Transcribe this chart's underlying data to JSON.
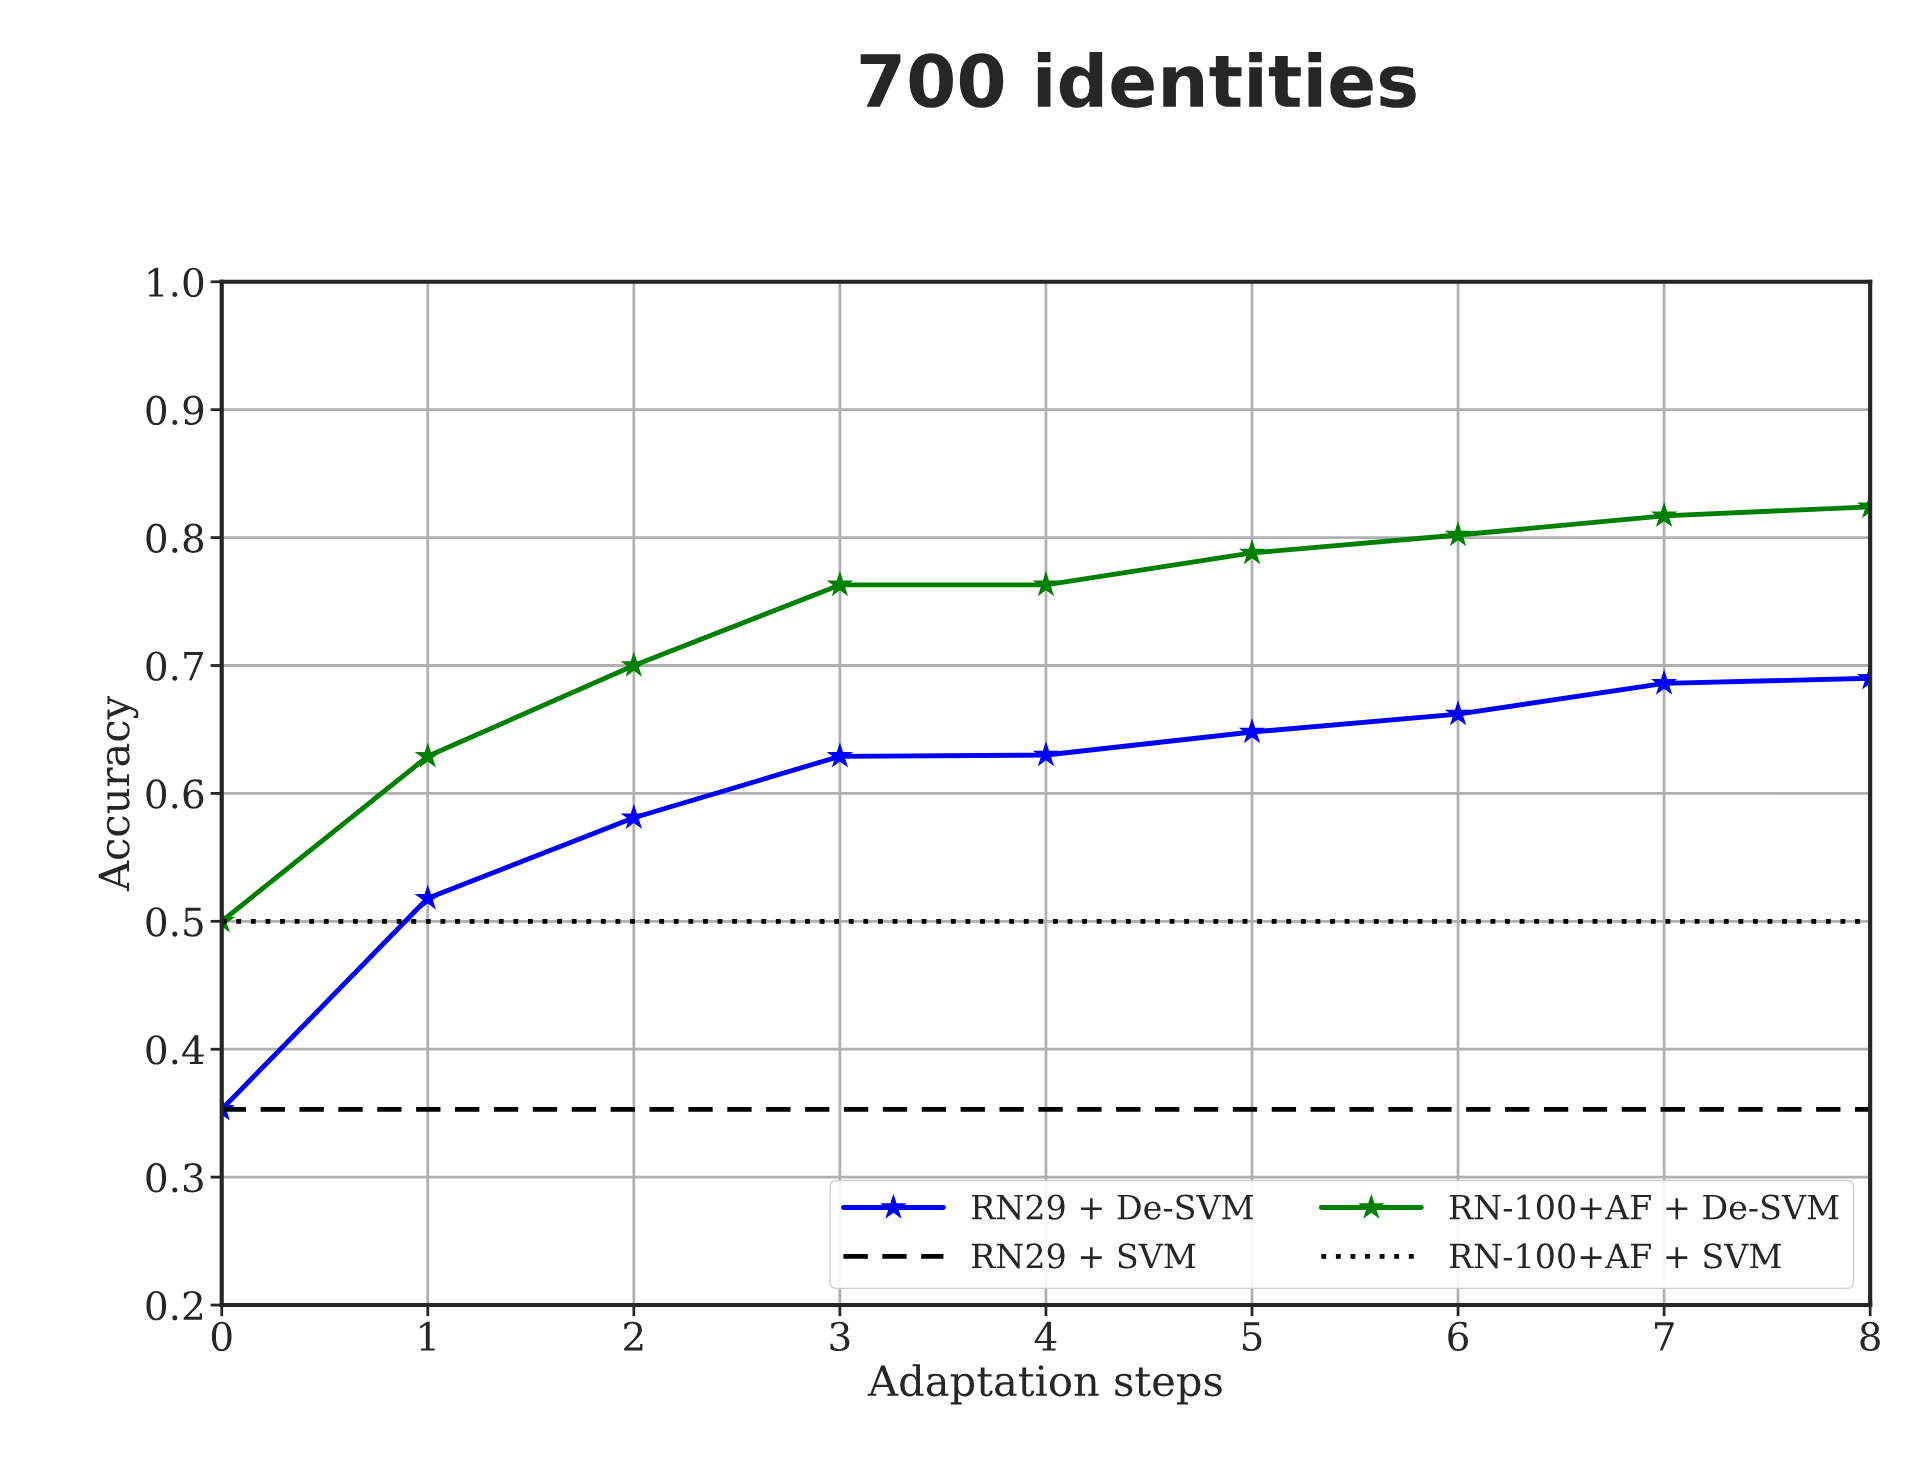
{
  "chart_data": {
    "type": "line",
    "title": "700 identities",
    "xlabel": "Adaptation steps",
    "ylabel": "Accuracy",
    "x": [
      0,
      1,
      2,
      3,
      4,
      5,
      6,
      7,
      8
    ],
    "series": [
      {
        "name": "RN29 + De-SVM",
        "color": "#0000ff",
        "marker": "star",
        "line_style": "solid",
        "values": [
          0.353,
          0.518,
          0.581,
          0.629,
          0.63,
          0.648,
          0.662,
          0.686,
          0.69
        ]
      },
      {
        "name": "RN29 + SVM",
        "color": "#000000",
        "marker": "none",
        "line_style": "dashed",
        "values": [
          0.353,
          0.353,
          0.353,
          0.353,
          0.353,
          0.353,
          0.353,
          0.353,
          0.353
        ]
      },
      {
        "name": "RN-100+AF + De-SVM",
        "color": "#008000",
        "marker": "star",
        "line_style": "solid",
        "values": [
          0.5,
          0.629,
          0.7,
          0.763,
          0.763,
          0.788,
          0.802,
          0.817,
          0.824
        ]
      },
      {
        "name": "RN-100+AF + SVM",
        "color": "#000000",
        "marker": "none",
        "line_style": "dotted",
        "values": [
          0.5,
          0.5,
          0.5,
          0.5,
          0.5,
          0.5,
          0.5,
          0.5,
          0.5
        ]
      }
    ],
    "xlim": [
      0,
      8
    ],
    "xticks": [
      0,
      1,
      2,
      3,
      4,
      5,
      6,
      7,
      8
    ],
    "ylim": [
      0.2,
      1.0
    ],
    "yticks": [
      {
        "value": 0.2,
        "label": "0.2"
      },
      {
        "value": 0.3,
        "label": "0.3"
      },
      {
        "value": 0.4,
        "label": "0.4"
      },
      {
        "value": 0.5,
        "label": "0.5"
      },
      {
        "value": 0.6,
        "label": "0.6"
      },
      {
        "value": 0.7,
        "label": "0.7"
      },
      {
        "value": 0.8,
        "label": "0.8"
      },
      {
        "value": 0.9,
        "label": "0.9"
      },
      {
        "value": 1.0,
        "label": "1.0"
      }
    ],
    "grid": true,
    "legend": "bottom right"
  }
}
